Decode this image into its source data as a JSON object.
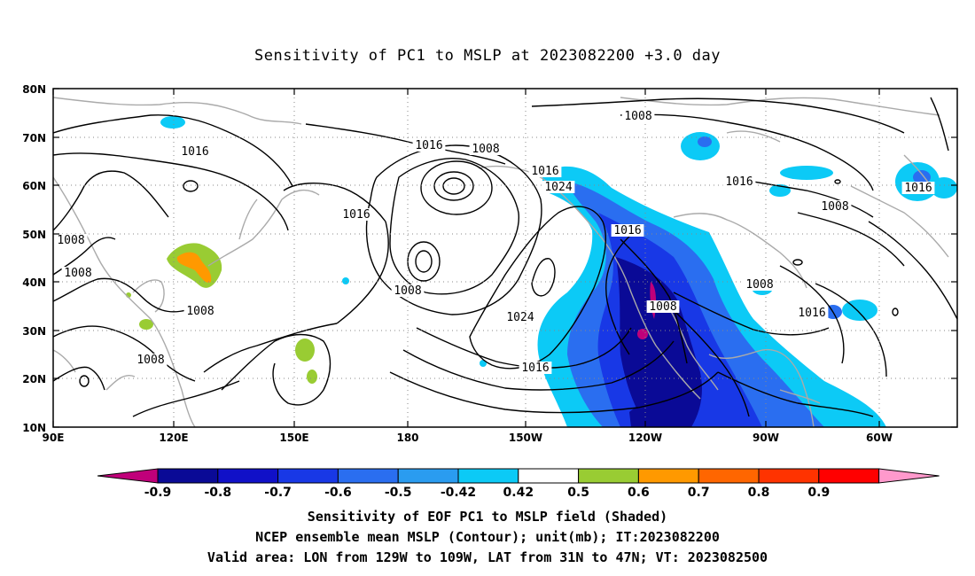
{
  "title": "Sensitivity of PC1 to MSLP at 2023082200 +3.0 day",
  "lon_ticks": [
    "90E",
    "120E",
    "150E",
    "180",
    "150W",
    "120W",
    "90W",
    "60W"
  ],
  "lat_ticks": [
    "80N",
    "70N",
    "60N",
    "50N",
    "40N",
    "30N",
    "20N",
    "10N"
  ],
  "contour_labels": [
    "1008",
    "1016",
    "1008",
    "1016",
    "1016",
    "1008",
    "1016",
    "1024",
    "1016",
    "1008",
    "1016",
    "1008",
    "1016",
    "1016",
    "1008",
    "1008",
    "1024",
    "1016",
    "1008",
    "1008",
    "1008"
  ],
  "colorbar": {
    "labels": [
      "-0.9",
      "-0.8",
      "-0.7",
      "-0.6",
      "-0.5",
      "-0.42",
      "0.42",
      "0.5",
      "0.6",
      "0.7",
      "0.8",
      "0.9"
    ],
    "colors": [
      "#c0007a",
      "#0a0a96",
      "#1010c8",
      "#1838e6",
      "#2a6ef0",
      "#2a9cf0",
      "#0ccaf6",
      "#ffffff",
      "#99cc33",
      "#ff9900",
      "#ff6600",
      "#ff3300",
      "#ff0000",
      "#ff99cc"
    ]
  },
  "footer": [
    "Sensitivity of EOF PC1 to MSLP field (Shaded)",
    "NCEP ensemble mean MSLP (Contour); unit(mb); IT:2023082200",
    "Valid area: LON from 129W to 109W, LAT from 31N to 47N; VT: 2023082500"
  ]
}
